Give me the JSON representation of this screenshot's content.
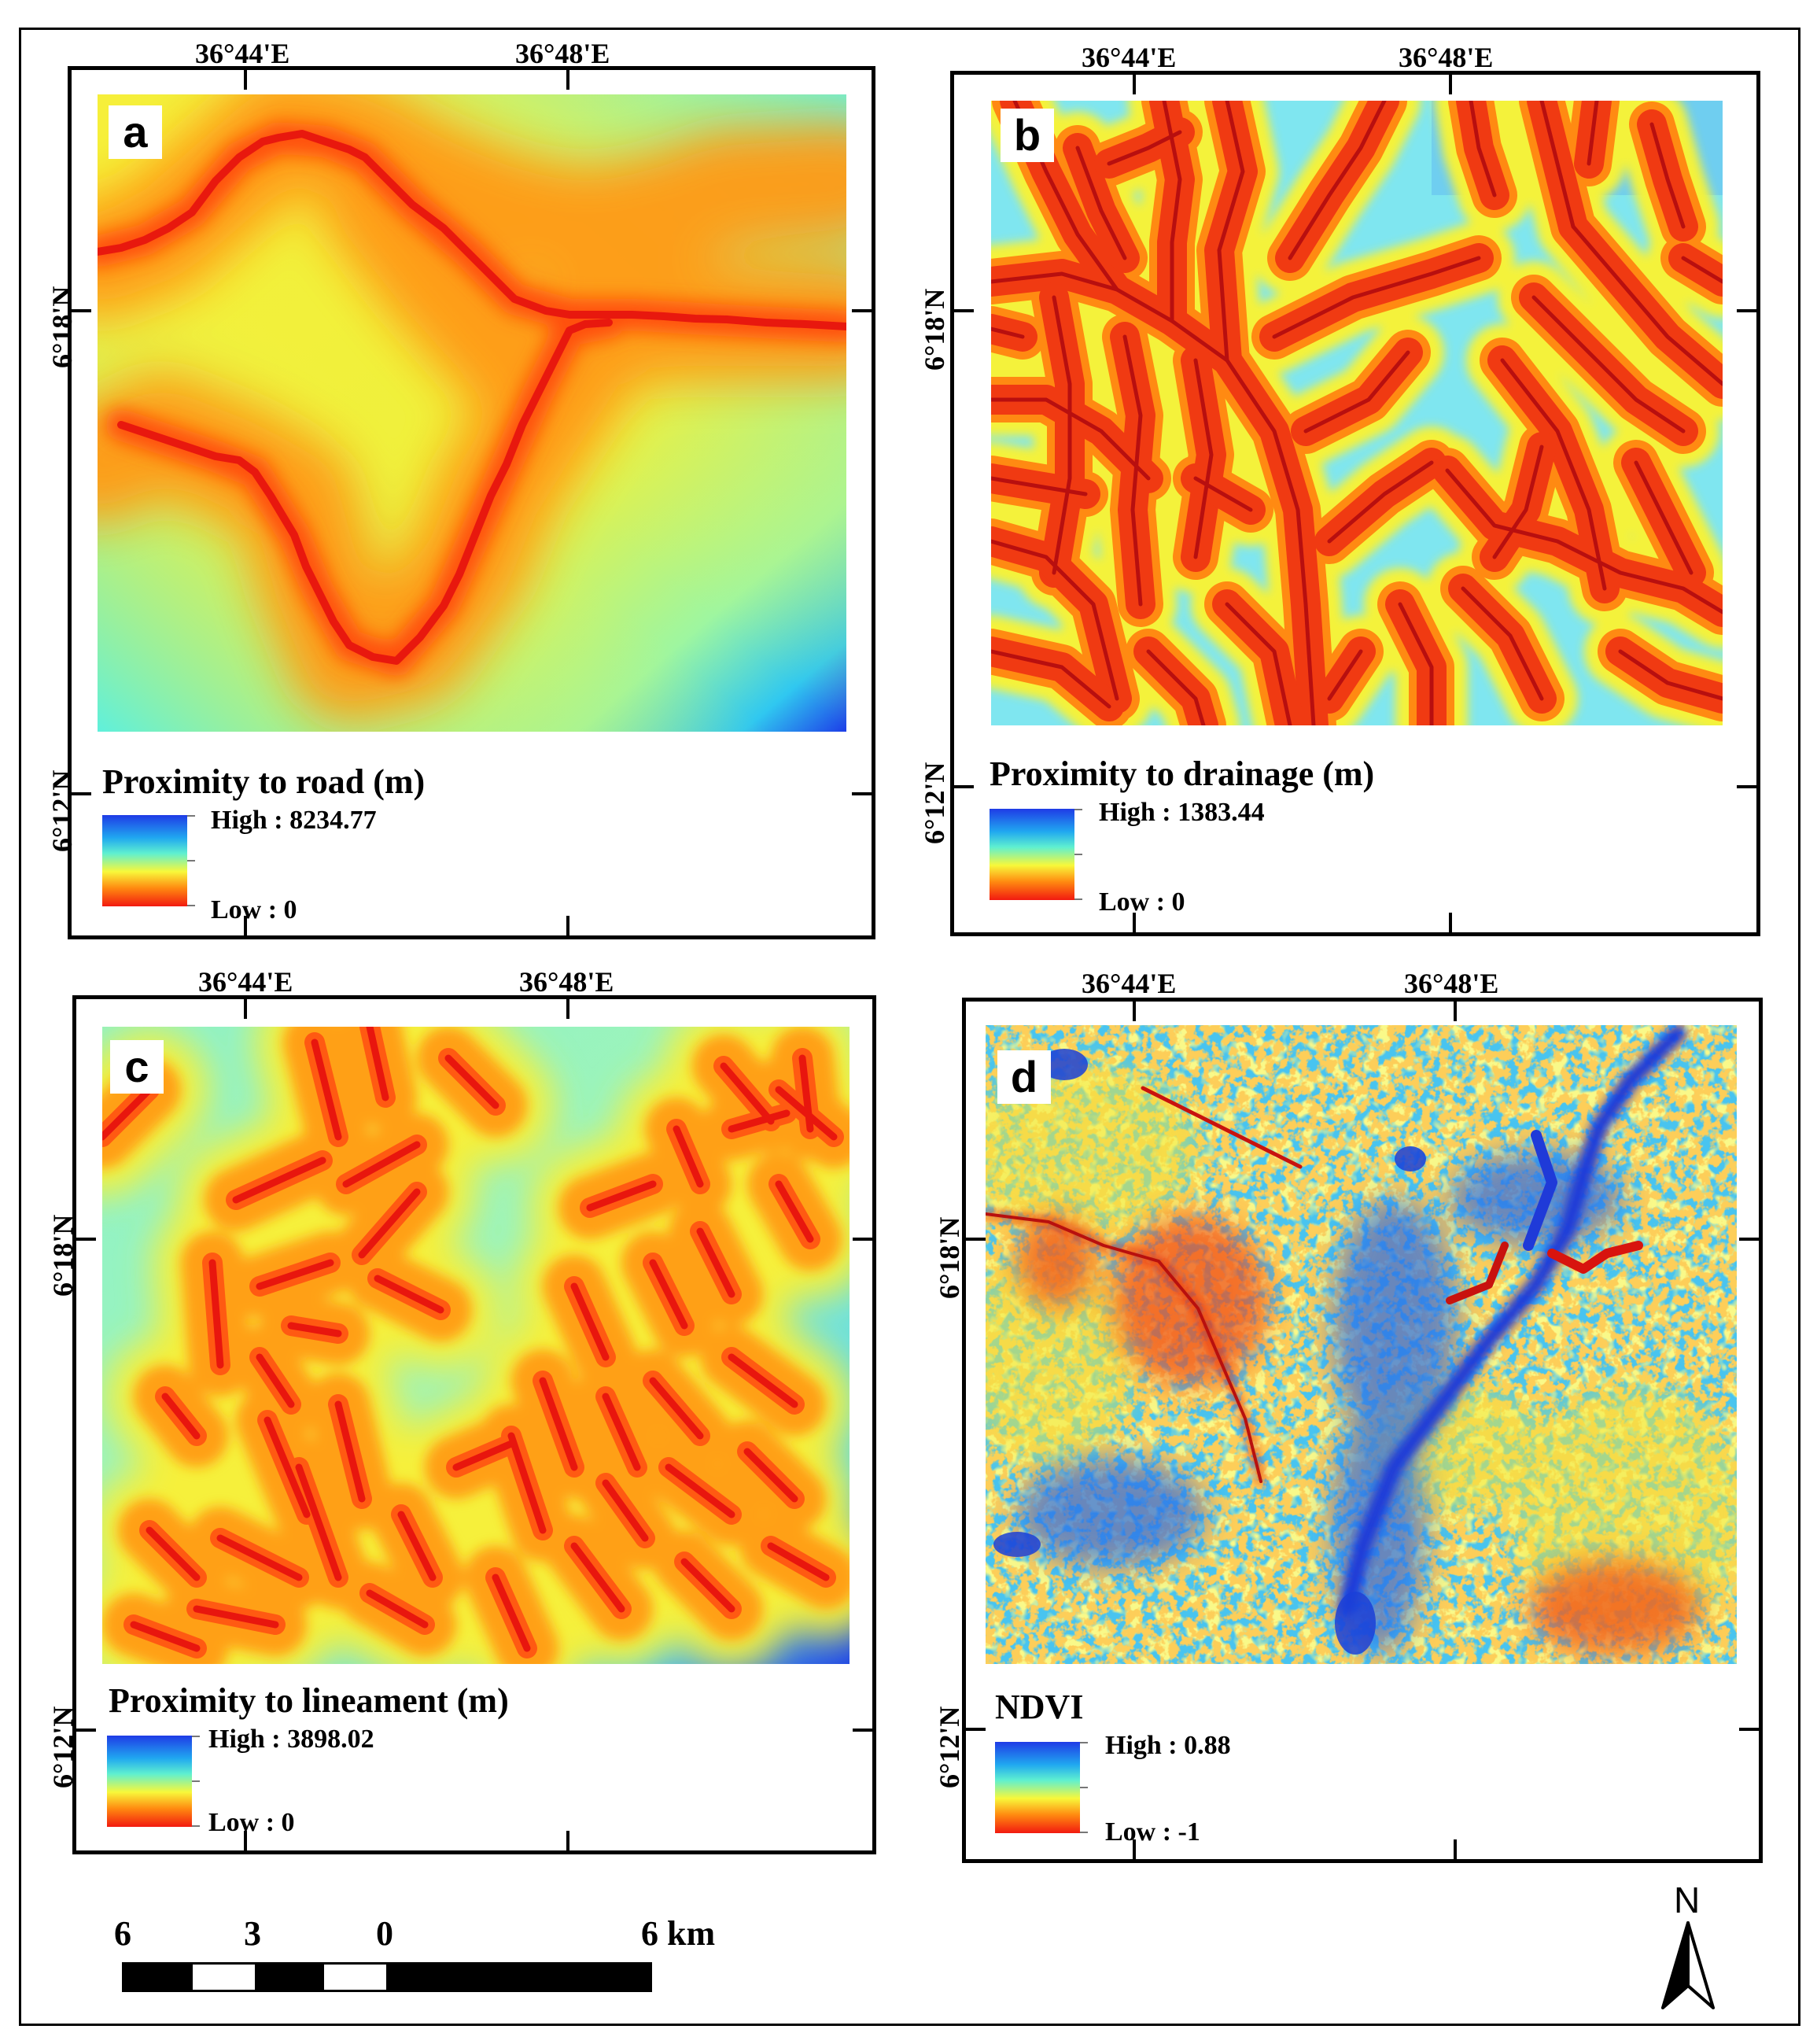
{
  "coordinates": {
    "lon_left": "36°44'E",
    "lon_right": "36°48'E",
    "lat_top": "6°18'N",
    "lat_bottom": "6°12'N"
  },
  "panels": [
    {
      "letter": "a",
      "title": "Proximity to road (m)",
      "high": "High : 8234.77",
      "low": "Low : 0"
    },
    {
      "letter": "b",
      "title": "Proximity to drainage (m)",
      "high": "High : 1383.44",
      "low": "Low : 0"
    },
    {
      "letter": "c",
      "title": "Proximity to lineament (m)",
      "high": "High : 3898.02",
      "low": "Low : 0"
    },
    {
      "letter": "d",
      "title": "NDVI",
      "high": "High : 0.88",
      "low": "Low : -1"
    }
  ],
  "scale_bar": {
    "labels": [
      "6",
      "3",
      "0",
      "6 km"
    ]
  },
  "north_arrow": {
    "label": "N"
  },
  "colors": {
    "high": "#1f3be6",
    "mid": "#f8f83a",
    "low": "#f21a10"
  }
}
